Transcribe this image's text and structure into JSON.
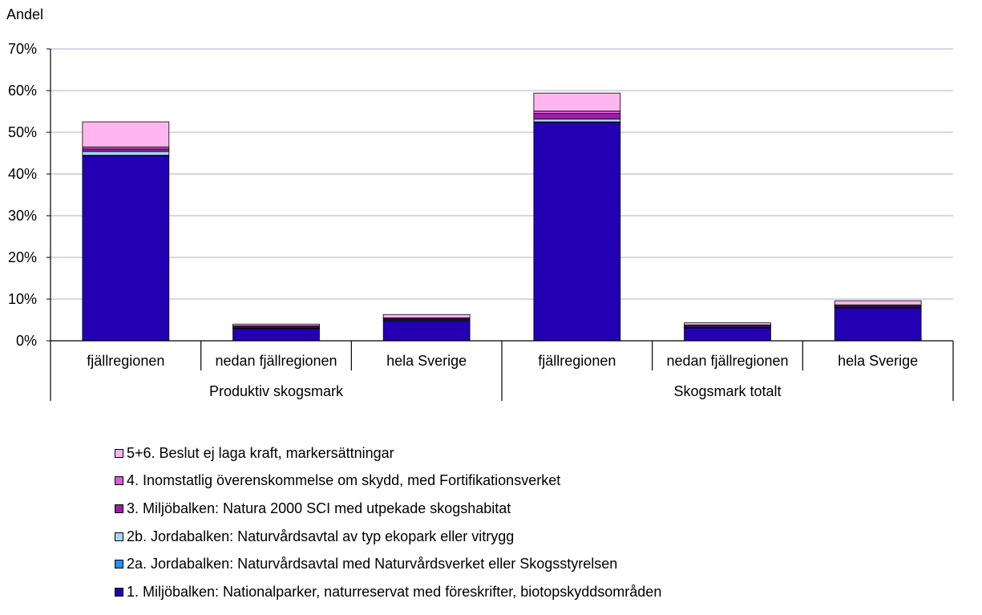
{
  "chart_data": {
    "type": "bar",
    "stacked": true,
    "title": "",
    "ylabel": "Andel",
    "xlabel": "",
    "ylim": [
      0,
      0.7
    ],
    "yticks": [
      "0%",
      "10%",
      "20%",
      "30%",
      "40%",
      "50%",
      "60%",
      "70%"
    ],
    "grid": true,
    "legend_position": "bottom",
    "groups": [
      {
        "label": "Produktiv skogsmark",
        "categories": [
          "fjällregionen",
          "nedan fjällregionen",
          "hela Sverige"
        ]
      },
      {
        "label": "Skogsmark totalt",
        "categories": [
          "fjällregionen",
          "nedan fjällregionen",
          "hela Sverige"
        ]
      }
    ],
    "series": [
      {
        "name": "1. Miljöbalken: Nationalparker, naturreservat med föreskrifter, biotopskyddsområden",
        "color": "#2400b4",
        "values": [
          0.444,
          0.029,
          0.048,
          0.524,
          0.031,
          0.079
        ]
      },
      {
        "name": "2a. Jordabalken: Naturvårdsavtal med Naturvårdsverket eller Skogsstyrelsen",
        "color": "#1e90ff",
        "values": [
          0.001,
          0.001,
          0.001,
          0.001,
          0.001,
          0.001
        ]
      },
      {
        "name": "2b. Jordabalken: Naturvårdsavtal av typ ekopark eller vitrygg",
        "color": "#a6d5f5",
        "values": [
          0.009,
          0.002,
          0.002,
          0.007,
          0.002,
          0.002
        ]
      },
      {
        "name": "3. Miljöbalken: Natura 2000 SCI med utpekade skogshabitat",
        "color": "#9b1fa6",
        "values": [
          0.006,
          0.003,
          0.003,
          0.013,
          0.003,
          0.003
        ]
      },
      {
        "name": "4. Inomstatlig överenskommelse om skydd, med Fortifikationsverket",
        "color": "#d65fd6",
        "values": [
          0.005,
          0.001,
          0.001,
          0.006,
          0.001,
          0.001
        ]
      },
      {
        "name": "5+6. Beslut ej laga kraft, markersättningar",
        "color": "#ffb6f0",
        "values": [
          0.06,
          0.004,
          0.008,
          0.043,
          0.005,
          0.01
        ]
      }
    ]
  }
}
